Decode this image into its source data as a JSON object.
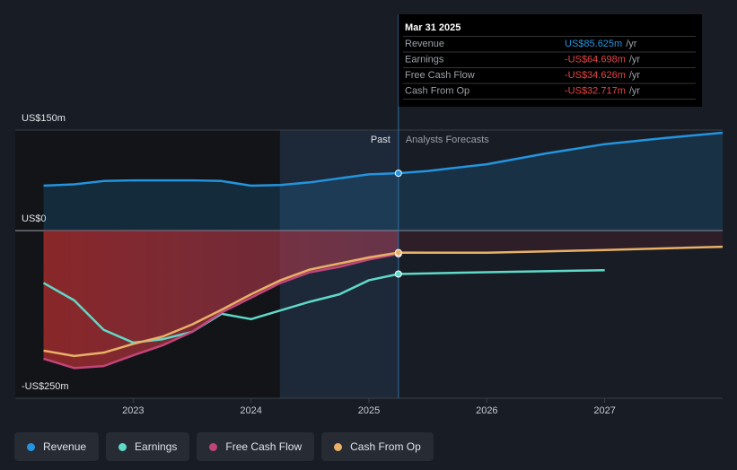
{
  "chart_data": {
    "type": "line",
    "xlim": [
      2022.0,
      2028.0
    ],
    "xticks": [
      2023,
      2024,
      2025,
      2026,
      2027
    ],
    "ylim": [
      -250,
      150
    ],
    "yticks": [
      {
        "value": 150,
        "label": "US$150m"
      },
      {
        "value": 0,
        "label": "US$0"
      },
      {
        "value": -250,
        "label": "-US$250m"
      }
    ],
    "grid": true,
    "annotations": {
      "past": "Past",
      "forecast": "Analysts Forecasts"
    },
    "series": [
      {
        "name": "Revenue",
        "color": "#2394df",
        "x": [
          2022.24,
          2022.5,
          2022.75,
          2023.0,
          2023.5,
          2023.75,
          2024.0,
          2024.25,
          2024.5,
          2024.75,
          2025.0,
          2025.25,
          2025.5,
          2026.0,
          2026.5,
          2027.0,
          2027.5,
          2028.0
        ],
        "values": [
          67,
          69,
          74,
          75,
          75,
          74,
          67,
          68,
          72,
          78,
          84,
          85.625,
          89,
          99,
          115,
          129,
          138,
          146
        ]
      },
      {
        "name": "Earnings",
        "color": "#5fd9c9",
        "x": [
          2022.24,
          2022.5,
          2022.75,
          2023.0,
          2023.25,
          2023.5,
          2023.75,
          2024.0,
          2024.25,
          2024.5,
          2024.75,
          2025.0,
          2025.25,
          2026.0,
          2027.0
        ],
        "values": [
          -78,
          -104,
          -148,
          -167,
          -162,
          -151,
          -124,
          -132,
          -119,
          -106,
          -95,
          -74,
          -64.698,
          -62,
          -59
        ]
      },
      {
        "name": "Free Cash Flow",
        "color": "#c2457a",
        "x": [
          2022.24,
          2022.5,
          2022.75,
          2023.0,
          2023.25,
          2023.5,
          2023.75,
          2024.0,
          2024.25,
          2024.5,
          2024.75,
          2025.0,
          2025.25
        ],
        "values": [
          -191,
          -205,
          -202,
          -186,
          -171,
          -151,
          -122,
          -100,
          -78,
          -62,
          -54,
          -43,
          -34.626
        ]
      },
      {
        "name": "Cash From Op",
        "color": "#e8b167",
        "x": [
          2022.24,
          2022.5,
          2022.75,
          2023.0,
          2023.25,
          2023.5,
          2023.75,
          2024.0,
          2024.25,
          2024.5,
          2024.75,
          2025.0,
          2025.25,
          2026.0,
          2027.0,
          2028.0
        ],
        "values": [
          -179,
          -187,
          -182,
          -169,
          -158,
          -140,
          -118,
          -95,
          -74,
          -58,
          -49,
          -40,
          -32.717,
          -33,
          -29,
          -24
        ]
      }
    ],
    "tooltip": {
      "title": "Mar 31 2025",
      "rows": [
        {
          "name": "Revenue",
          "value": "US$85.625m",
          "unit": "/yr",
          "color": "#2394df"
        },
        {
          "name": "Earnings",
          "value": "-US$64.698m",
          "unit": "/yr",
          "color": "#e64545"
        },
        {
          "name": "Free Cash Flow",
          "value": "-US$34.626m",
          "unit": "/yr",
          "color": "#e64545"
        },
        {
          "name": "Cash From Op",
          "value": "-US$32.717m",
          "unit": "/yr",
          "color": "#e64545"
        }
      ]
    }
  }
}
